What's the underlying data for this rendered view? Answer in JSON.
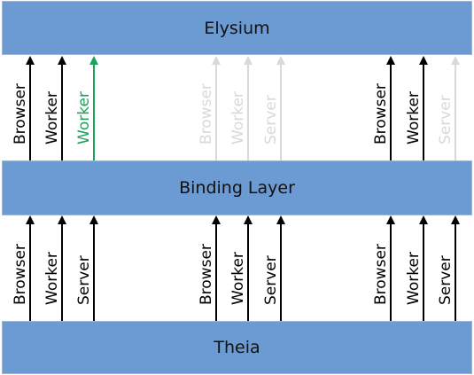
{
  "layers": {
    "top": "Elysium",
    "middle": "Binding Layer",
    "bottom": "Theia"
  },
  "colors": {
    "band": "#6b9bd2",
    "active": "#000000",
    "faded": "#d9d9d9",
    "highlight": "#1aa35a"
  },
  "upper_groups": [
    {
      "arrows": [
        {
          "label": "Browser",
          "state": "active"
        },
        {
          "label": "Worker",
          "state": "active"
        },
        {
          "label": "Worker",
          "state": "highlight"
        }
      ]
    },
    {
      "arrows": [
        {
          "label": "Browser",
          "state": "faded"
        },
        {
          "label": "Worker",
          "state": "faded"
        },
        {
          "label": "Server",
          "state": "faded"
        }
      ]
    },
    {
      "arrows": [
        {
          "label": "Browser",
          "state": "active"
        },
        {
          "label": "Worker",
          "state": "active"
        },
        {
          "label": "Server",
          "state": "faded"
        }
      ]
    }
  ],
  "lower_groups": [
    {
      "arrows": [
        {
          "label": "Browser",
          "state": "active"
        },
        {
          "label": "Worker",
          "state": "active"
        },
        {
          "label": "Server",
          "state": "active"
        }
      ]
    },
    {
      "arrows": [
        {
          "label": "Browser",
          "state": "active"
        },
        {
          "label": "Worker",
          "state": "active"
        },
        {
          "label": "Server",
          "state": "active"
        }
      ]
    },
    {
      "arrows": [
        {
          "label": "Browser",
          "state": "active"
        },
        {
          "label": "Worker",
          "state": "active"
        },
        {
          "label": "Server",
          "state": "active"
        }
      ]
    }
  ]
}
